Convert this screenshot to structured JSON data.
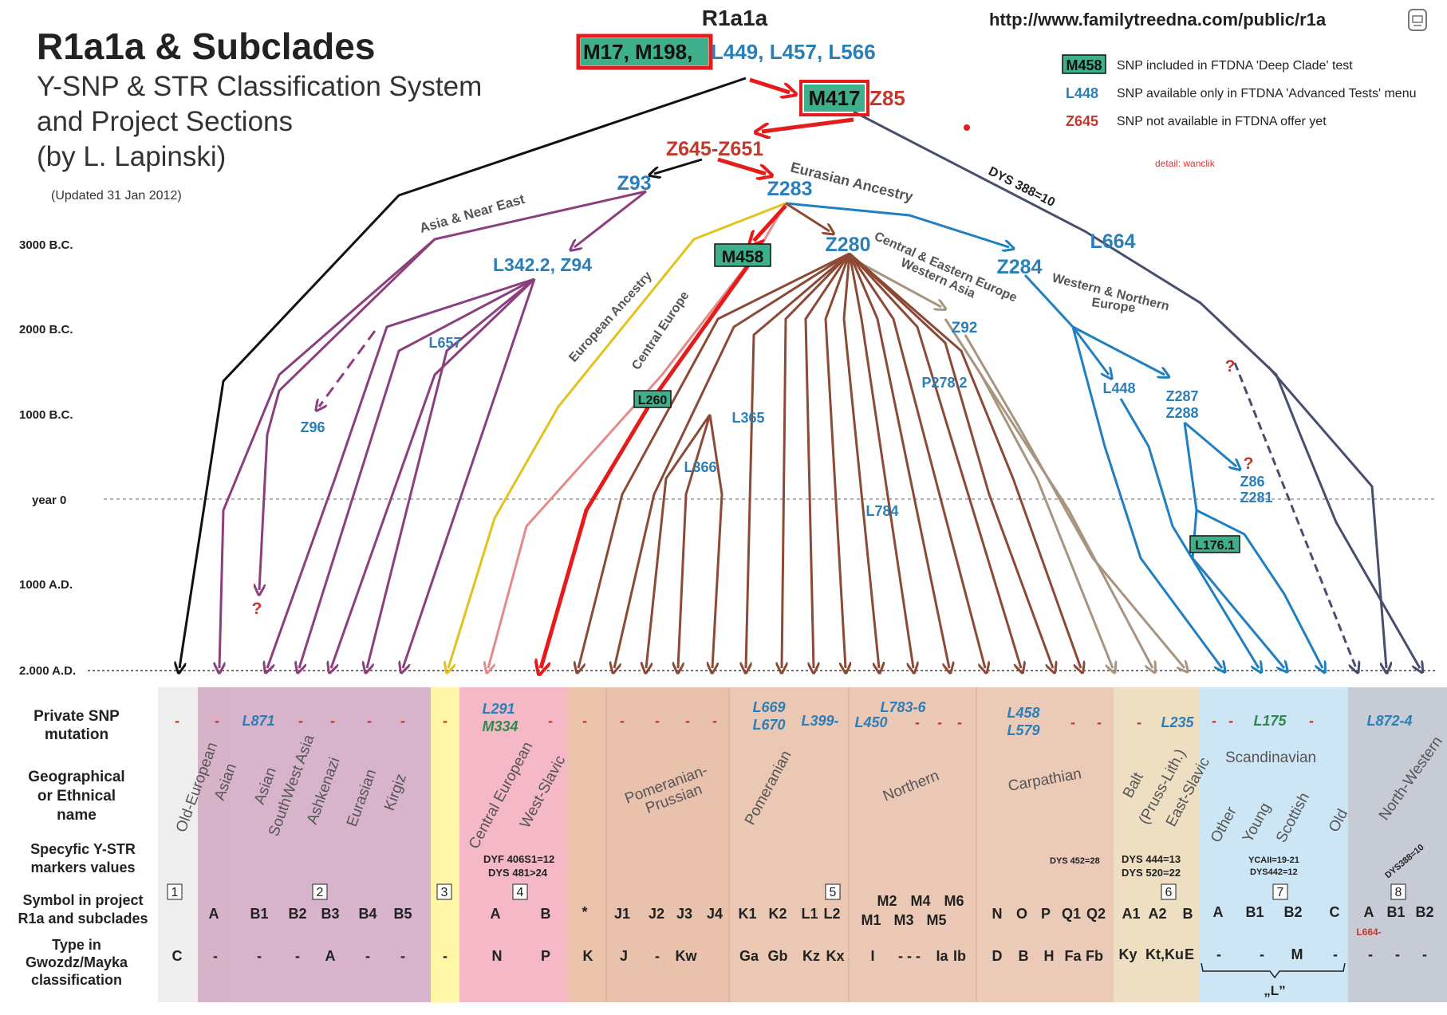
{
  "header": {
    "title": "R1a1a & Subclades",
    "subtitle_lines": [
      "Y-SNP & STR Classification System",
      "and Project Sections",
      "(by L. Lapinski)"
    ],
    "updated": "(Updated 31 Jan 2012)",
    "root_name": "R1a1a",
    "url": "http://www.familytreedna.com/public/r1a",
    "detail_note": "detail: wanclik"
  },
  "root_snps": {
    "boxed": "M17, M198,",
    "rest": "L449, L457, L566"
  },
  "legend": [
    {
      "code": "M458",
      "text": "SNP included in FTDNA 'Deep Clade' test",
      "style": "boxed"
    },
    {
      "code": "L448",
      "text": "SNP available only in FTDNA 'Advanced Tests' menu",
      "style": "blue"
    },
    {
      "code": "Z645",
      "text": "SNP not available in FTDNA offer yet",
      "style": "red"
    }
  ],
  "time_axis": [
    "3000 B.C.",
    "2000 B.C.",
    "1000 B.C.",
    "year 0",
    "1000 A.D.",
    "2.000 A.D."
  ],
  "nodes": {
    "m417": "M417",
    "z85": "Z85",
    "z645": "Z645-Z651",
    "z93": "Z93",
    "z283": "Z283",
    "l342": "L342.2, Z94",
    "m458": "M458",
    "z280": "Z280",
    "z284": "Z284",
    "l664": "L664",
    "l657": "L657",
    "z96": "Z96",
    "l260": "L260",
    "l365": "L365",
    "l366": "L366",
    "z92": "Z92",
    "p278": "P278.2",
    "l784": "L784",
    "l448": "L448",
    "z287": "Z287",
    "z288": "Z288",
    "z86": "Z86",
    "z281": "Z281",
    "l176": "L176.1",
    "q": "?"
  },
  "branch_labels": {
    "asia": "Asia & Near East",
    "eurasian": "Eurasian Ancestry",
    "dys388": "DYS 388=10",
    "european": "European Ancestry",
    "central_europe": "Central Europe",
    "central_eastern": "Central & Eastern Europe",
    "western_asia": "Western Asia",
    "western_northern": "Western & Northern",
    "europe": "Europe"
  },
  "table": {
    "row_labels": [
      [
        "Private SNP",
        "mutation"
      ],
      [
        "Geographical",
        "or Ethnical",
        "name"
      ],
      [
        "Specyfic Y-STR",
        "markers values"
      ],
      [
        "Symbol in project",
        "R1a and subclades"
      ],
      [
        "Type in",
        "Gwozdz/Mayka",
        "classification"
      ]
    ],
    "geo_names": [
      "Old-European",
      "Asian",
      "Asian",
      "SouthWest Asia",
      "Ashkenazi",
      "Eurasian",
      "Kirgiz",
      "Central European",
      "West-Slavic",
      "Pomeranian-",
      "Prussian",
      "Pomeranian",
      "Northern",
      "Carpathian",
      "Balt",
      "(Pruss-Lith.)",
      "East-Slavic",
      "Scandinavian",
      "Other",
      "Young",
      "Scottish",
      "Old",
      "North-Western"
    ],
    "snp_labels": [
      "L871",
      "L291",
      "M334",
      "L669",
      "L670",
      "L399-",
      "L450",
      "L783-6",
      "L458",
      "L579",
      "L235",
      "L175",
      "L872-4"
    ],
    "dash": "-",
    "str_values": [
      "DYF 406S1=12",
      "DYS 481>24",
      "DYS 452=28",
      "DYS 444=13",
      "DYS 520=22",
      "YCAII=19-21",
      "DYS442=12",
      "DYS388=10"
    ],
    "section_numbers": [
      "1",
      "2",
      "3",
      "4",
      "5",
      "6",
      "7",
      "8"
    ],
    "symbols": [
      "A",
      "B1",
      "B2",
      "B3",
      "B4",
      "B5",
      "A",
      "B",
      "*",
      "J1",
      "J2",
      "J3",
      "J4",
      "K1",
      "K2",
      "L1",
      "L2",
      "M2",
      "M4",
      "M6",
      "M1",
      "M3",
      "M5",
      "N",
      "O",
      "P",
      "Q1",
      "Q2",
      "A1",
      "A2",
      "B",
      "A",
      "B1",
      "B2",
      "C",
      "A",
      "B1",
      "B2"
    ],
    "l664_note": "L664-",
    "types": [
      "C",
      "-",
      "-",
      "-",
      "A",
      "-",
      "-",
      "-",
      "N",
      "P",
      "K",
      "J",
      "-",
      "Kw",
      "Ga",
      "Gb",
      "Kz",
      "Kx",
      "I",
      "- - -",
      "Ia",
      "Ib",
      "D",
      "B",
      "H",
      "Fa",
      "Fb",
      "Ky",
      "Kt,Ku",
      "E",
      "-",
      "-",
      "M",
      "-",
      "-",
      "-",
      "-"
    ],
    "bracket": "„L”"
  },
  "colors": {
    "black": "#111111",
    "purple": "#8c3f7d",
    "yellow": "#e2c21c",
    "pink": "#e58a8a",
    "red": "#e51c1c",
    "brown": "#8c4a36",
    "tan": "#a89580",
    "blue": "#1f7fc0",
    "slate": "#474e6e",
    "snp_blue": "#2b7fb8",
    "snp_red": "#c0392b",
    "box_green": "#3fae8a"
  }
}
